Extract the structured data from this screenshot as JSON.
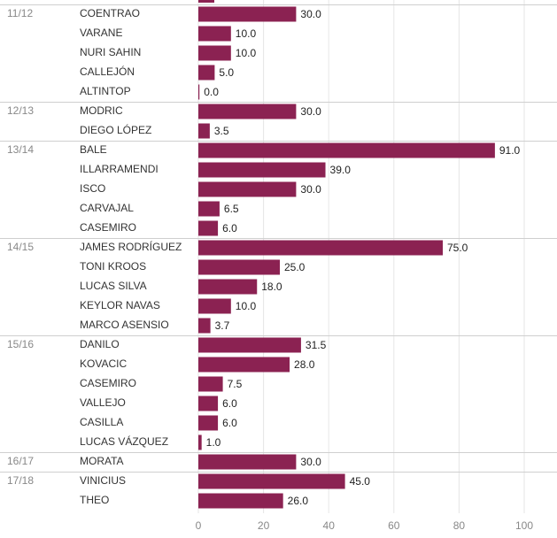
{
  "chart_data": {
    "type": "bar",
    "orientation": "horizontal",
    "xlim": [
      0,
      100
    ],
    "xticks": [
      0,
      20,
      40,
      60,
      80,
      100
    ],
    "grid": true,
    "bar_color": "#8b2252",
    "groups": [
      {
        "season": "11/12",
        "players": [
          {
            "name": "COENTRAO",
            "value": 30.0,
            "label": "30.0"
          },
          {
            "name": "VARANE",
            "value": 10.0,
            "label": "10.0"
          },
          {
            "name": "NURI SAHIN",
            "value": 10.0,
            "label": "10.0"
          },
          {
            "name": "CALLEJÓN",
            "value": 5.0,
            "label": "5.0"
          },
          {
            "name": "ALTINTOP",
            "value": 0.0,
            "label": "0.0"
          }
        ]
      },
      {
        "season": "12/13",
        "players": [
          {
            "name": "MODRIC",
            "value": 30.0,
            "label": "30.0"
          },
          {
            "name": "DIEGO LÓPEZ",
            "value": 3.5,
            "label": "3.5"
          }
        ]
      },
      {
        "season": "13/14",
        "players": [
          {
            "name": "BALE",
            "value": 91.0,
            "label": "91.0"
          },
          {
            "name": "ILLARRAMENDI",
            "value": 39.0,
            "label": "39.0"
          },
          {
            "name": "ISCO",
            "value": 30.0,
            "label": "30.0"
          },
          {
            "name": "CARVAJAL",
            "value": 6.5,
            "label": "6.5"
          },
          {
            "name": "CASEMIRO",
            "value": 6.0,
            "label": "6.0"
          }
        ]
      },
      {
        "season": "14/15",
        "players": [
          {
            "name": "JAMES RODRÍGUEZ",
            "value": 75.0,
            "label": "75.0"
          },
          {
            "name": "TONI KROOS",
            "value": 25.0,
            "label": "25.0"
          },
          {
            "name": "LUCAS SILVA",
            "value": 18.0,
            "label": "18.0"
          },
          {
            "name": "KEYLOR NAVAS",
            "value": 10.0,
            "label": "10.0"
          },
          {
            "name": "MARCO ASENSIO",
            "value": 3.7,
            "label": "3.7"
          }
        ]
      },
      {
        "season": "15/16",
        "players": [
          {
            "name": "DANILO",
            "value": 31.5,
            "label": "31.5"
          },
          {
            "name": "KOVACIC",
            "value": 28.0,
            "label": "28.0"
          },
          {
            "name": "CASEMIRO",
            "value": 7.5,
            "label": "7.5"
          },
          {
            "name": "VALLEJO",
            "value": 6.0,
            "label": "6.0"
          },
          {
            "name": "CASILLA",
            "value": 6.0,
            "label": "6.0"
          },
          {
            "name": "LUCAS VÁZQUEZ",
            "value": 1.0,
            "label": "1.0"
          }
        ]
      },
      {
        "season": "16/17",
        "players": [
          {
            "name": "MORATA",
            "value": 30.0,
            "label": "30.0"
          }
        ]
      },
      {
        "season": "17/18",
        "players": [
          {
            "name": "VINICIUS",
            "value": 45.0,
            "label": "45.0"
          },
          {
            "name": "THEO",
            "value": 26.0,
            "label": "26.0"
          }
        ]
      }
    ]
  }
}
